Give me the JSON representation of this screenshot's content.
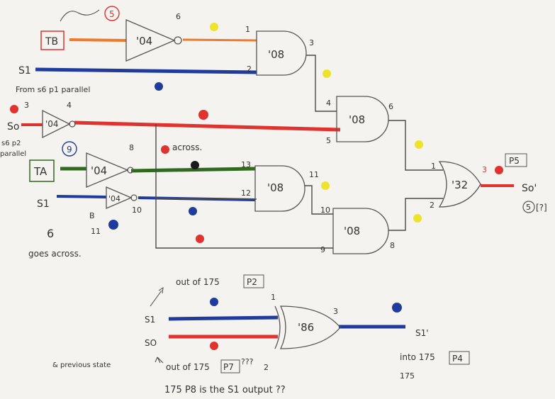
{
  "inputs": {
    "tb": "TB",
    "ta": "TA",
    "s1_top": "S1",
    "s0": "So",
    "s1_mid": "S1"
  },
  "gates": {
    "not_tb": "'04",
    "not_s0": "'04",
    "not_ta": "'04",
    "not_s1": "'04",
    "and1": "'08",
    "and2": "'08",
    "and3": "'08",
    "and4": "'08",
    "or1": "'32",
    "xor1": "'86"
  },
  "pins": {
    "tb_circle": "5",
    "not_tb_out": "6",
    "and1_in1": "1",
    "and1_in2": "2",
    "and1_out": "3",
    "s0_in": "3",
    "not_s0_out": "4",
    "ta_circle": "9",
    "not_ta_out": "8",
    "not_s1_out": "10",
    "not_s1_in": "11",
    "and2_in1": "4",
    "and2_in2": "5",
    "and2_out": "6",
    "and3_in1": "13",
    "and3_in2": "12",
    "and3_out": "11",
    "and4_in1": "10",
    "and4_in2": "9",
    "and4_out": "8",
    "or_in1": "1",
    "or_in2": "2",
    "or_out": "3",
    "xor_in1": "1",
    "xor_in2": "2",
    "xor_out": "3"
  },
  "notes": {
    "from_s6_p1": "From s6 p1 parallel",
    "s6_p2": "s6 p2",
    "parallel": "parallel",
    "across": "across.",
    "goes_across": "goes across.",
    "six": "6",
    "scribble": "B",
    "output_s0": "So'",
    "circle_5": "5",
    "p7_top": "[?]",
    "s1_out_of": "out of 175",
    "s0_out_of": "out of 175",
    "qqq": "???",
    "pin_p2": "P2",
    "pin_p7": "P7",
    "pin_p4": "P4",
    "into": "into 175",
    "label_175": "175",
    "p5_box": "P5",
    "previous_state": "& previous state",
    "bottom_line": "175 P8 is the S1 output ??",
    "xor_s1": "S1",
    "xor_s0": "SO",
    "xor_out_label": "S1'"
  },
  "colors": {
    "red": "#e0322f",
    "blue": "#1f3c9c",
    "orange": "#ef7a2a",
    "green": "#2f6a1f",
    "yellow": "#ece32a",
    "black": "#1a1a1a",
    "wire": "#4a4a4a"
  }
}
